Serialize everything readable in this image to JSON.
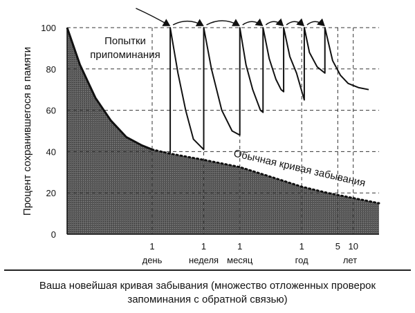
{
  "chart_data": {
    "type": "area",
    "title": "Ваша новейшая кривая забывания (множество отложенных проверок запоминания с обратной связью)",
    "caption_lines": [
      "Ваша новейшая кривая забывания (множество отложенных проверок",
      "запоминания с обратной связью)"
    ],
    "ylabel": "Процент сохранившегося в памяти",
    "ylim": [
      0,
      100
    ],
    "yticks": [
      0,
      20,
      40,
      60,
      80,
      100
    ],
    "xlabel": "",
    "xticks": [
      {
        "pos": 1,
        "num": "1",
        "unit": "день"
      },
      {
        "pos": 2,
        "num": "1",
        "unit": "неделя"
      },
      {
        "pos": 2.7,
        "num": "1",
        "unit": "месяц"
      },
      {
        "pos": 3.9,
        "num": "1",
        "unit": "год"
      },
      {
        "pos": 4.6,
        "num": "5",
        "unit": ""
      },
      {
        "pos": 4.9,
        "num": "10",
        "unit": ""
      }
    ],
    "x_units_label": "лет",
    "xlim": [
      -0.65,
      5.4
    ],
    "grid": true,
    "series": [
      {
        "name": "Обычная кривая забывания",
        "style": "filled-area-dotted-tail",
        "points": [
          [
            -0.65,
            100
          ],
          [
            -0.4,
            82
          ],
          [
            -0.1,
            66
          ],
          [
            0.2,
            55
          ],
          [
            0.5,
            47
          ],
          [
            0.8,
            43
          ],
          [
            1.0,
            41
          ],
          [
            1.35,
            39
          ],
          [
            2.0,
            36
          ],
          [
            2.7,
            32.5
          ],
          [
            3.4,
            27
          ],
          [
            3.9,
            23
          ],
          [
            4.4,
            20
          ],
          [
            4.9,
            17.5
          ],
          [
            5.4,
            15
          ]
        ]
      },
      {
        "name": "Попытки припоминания",
        "style": "sawtooth",
        "points": [
          [
            1.35,
            39
          ],
          [
            1.35,
            100
          ],
          [
            1.5,
            78
          ],
          [
            1.65,
            60
          ],
          [
            1.8,
            46
          ],
          [
            2.0,
            41
          ],
          [
            2.0,
            100
          ],
          [
            2.15,
            80
          ],
          [
            2.35,
            60
          ],
          [
            2.55,
            50
          ],
          [
            2.7,
            48
          ],
          [
            2.7,
            100
          ],
          [
            2.82,
            82
          ],
          [
            2.95,
            70
          ],
          [
            3.1,
            60
          ],
          [
            3.15,
            59
          ],
          [
            3.15,
            100
          ],
          [
            3.27,
            85
          ],
          [
            3.4,
            75
          ],
          [
            3.5,
            70
          ],
          [
            3.55,
            69
          ],
          [
            3.55,
            100
          ],
          [
            3.67,
            86
          ],
          [
            3.8,
            78
          ],
          [
            3.95,
            65
          ],
          [
            3.95,
            100
          ],
          [
            4.05,
            88
          ],
          [
            4.2,
            81
          ],
          [
            4.35,
            78
          ],
          [
            4.35,
            100
          ],
          [
            4.5,
            84
          ],
          [
            4.65,
            77
          ],
          [
            4.8,
            73
          ],
          [
            5.0,
            71
          ],
          [
            5.2,
            70
          ]
        ]
      }
    ],
    "annotations": [
      {
        "text": "Попытки",
        "line": 1
      },
      {
        "text": "припоминания",
        "line": 2
      },
      {
        "text": "Обычная кривая забывания",
        "rotated": true
      }
    ],
    "arrow_pairs": [
      [
        0.55,
        1.35
      ],
      [
        1.35,
        2.0
      ],
      [
        2.0,
        2.7
      ],
      [
        2.7,
        3.15
      ],
      [
        3.15,
        3.55
      ],
      [
        3.55,
        3.95
      ],
      [
        3.95,
        4.35
      ]
    ]
  }
}
